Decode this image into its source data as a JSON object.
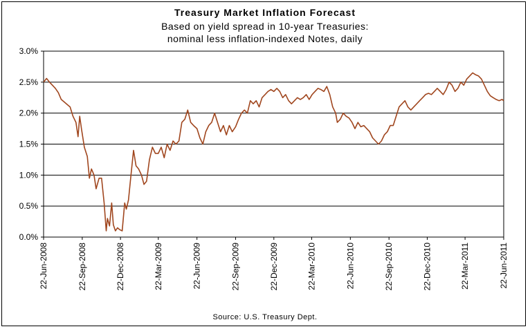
{
  "chart_data": {
    "type": "line",
    "title": "Treasury Market Inflation Forecast",
    "subtitle_lines": [
      "Based on yield spread in 10-year Treasuries:",
      "nominal less inflation-indexed Notes, daily"
    ],
    "source": "Source: U.S. Treasury Dept.",
    "xlabel": "",
    "ylabel": "",
    "ylim": [
      0,
      3.0
    ],
    "y_ticks": [
      {
        "value": 0.0,
        "label": "0.0%"
      },
      {
        "value": 0.5,
        "label": "0.5%"
      },
      {
        "value": 1.0,
        "label": "1.0%"
      },
      {
        "value": 1.5,
        "label": "1.5%"
      },
      {
        "value": 2.0,
        "label": "2.0%"
      },
      {
        "value": 2.5,
        "label": "2.5%"
      },
      {
        "value": 3.0,
        "label": "3.0%"
      }
    ],
    "x_range": [
      "2008-06-22",
      "2011-06-22"
    ],
    "x_ticks": [
      {
        "date": "2008-06-22",
        "label": "22-Jun-2008"
      },
      {
        "date": "2008-09-22",
        "label": "22-Sep-2008"
      },
      {
        "date": "2008-12-22",
        "label": "22-Dec-2008"
      },
      {
        "date": "2009-03-22",
        "label": "22-Mar-2009"
      },
      {
        "date": "2009-06-22",
        "label": "22-Jun-2009"
      },
      {
        "date": "2009-09-22",
        "label": "22-Sep-2009"
      },
      {
        "date": "2009-12-22",
        "label": "22-Dec-2009"
      },
      {
        "date": "2010-03-22",
        "label": "22-Mar-2010"
      },
      {
        "date": "2010-06-22",
        "label": "22-Jun-2010"
      },
      {
        "date": "2010-09-22",
        "label": "22-Sep-2010"
      },
      {
        "date": "2010-12-22",
        "label": "22-Dec-2010"
      },
      {
        "date": "2011-03-22",
        "label": "22-Mar-2011"
      },
      {
        "date": "2011-06-22",
        "label": "22-Jun-2011"
      }
    ],
    "grid": "horizontal",
    "line_color": "#a0461e",
    "series": [
      {
        "name": "",
        "points": [
          [
            "2008-06-22",
            2.5
          ],
          [
            "2008-06-29",
            2.56
          ],
          [
            "2008-07-06",
            2.5
          ],
          [
            "2008-07-13",
            2.45
          ],
          [
            "2008-07-20",
            2.4
          ],
          [
            "2008-07-27",
            2.33
          ],
          [
            "2008-08-03",
            2.22
          ],
          [
            "2008-08-10",
            2.18
          ],
          [
            "2008-08-17",
            2.14
          ],
          [
            "2008-08-24",
            2.1
          ],
          [
            "2008-08-31",
            1.95
          ],
          [
            "2008-09-07",
            1.85
          ],
          [
            "2008-09-12",
            1.62
          ],
          [
            "2008-09-16",
            1.95
          ],
          [
            "2008-09-20",
            1.75
          ],
          [
            "2008-09-27",
            1.45
          ],
          [
            "2008-10-04",
            1.3
          ],
          [
            "2008-10-09",
            0.95
          ],
          [
            "2008-10-14",
            1.1
          ],
          [
            "2008-10-20",
            1.0
          ],
          [
            "2008-10-25",
            0.78
          ],
          [
            "2008-11-01",
            0.95
          ],
          [
            "2008-11-07",
            0.95
          ],
          [
            "2008-11-13",
            0.55
          ],
          [
            "2008-11-18",
            0.1
          ],
          [
            "2008-11-21",
            0.3
          ],
          [
            "2008-11-26",
            0.18
          ],
          [
            "2008-12-01",
            0.55
          ],
          [
            "2008-12-05",
            0.2
          ],
          [
            "2008-12-10",
            0.1
          ],
          [
            "2008-12-15",
            0.15
          ],
          [
            "2008-12-20",
            0.12
          ],
          [
            "2008-12-26",
            0.1
          ],
          [
            "2009-01-01",
            0.55
          ],
          [
            "2009-01-05",
            0.45
          ],
          [
            "2009-01-10",
            0.6
          ],
          [
            "2009-01-16",
            1.0
          ],
          [
            "2009-01-22",
            1.4
          ],
          [
            "2009-01-28",
            1.15
          ],
          [
            "2009-02-03",
            1.1
          ],
          [
            "2009-02-10",
            1.0
          ],
          [
            "2009-02-16",
            0.85
          ],
          [
            "2009-02-22",
            0.9
          ],
          [
            "2009-03-01",
            1.25
          ],
          [
            "2009-03-08",
            1.45
          ],
          [
            "2009-03-15",
            1.35
          ],
          [
            "2009-03-22",
            1.35
          ],
          [
            "2009-03-29",
            1.45
          ],
          [
            "2009-04-05",
            1.28
          ],
          [
            "2009-04-12",
            1.5
          ],
          [
            "2009-04-19",
            1.4
          ],
          [
            "2009-04-26",
            1.55
          ],
          [
            "2009-05-03",
            1.5
          ],
          [
            "2009-05-10",
            1.55
          ],
          [
            "2009-05-17",
            1.85
          ],
          [
            "2009-05-24",
            1.9
          ],
          [
            "2009-05-31",
            2.05
          ],
          [
            "2009-06-07",
            1.85
          ],
          [
            "2009-06-14",
            1.8
          ],
          [
            "2009-06-22",
            1.75
          ],
          [
            "2009-06-29",
            1.6
          ],
          [
            "2009-07-06",
            1.5
          ],
          [
            "2009-07-13",
            1.7
          ],
          [
            "2009-07-20",
            1.8
          ],
          [
            "2009-07-27",
            1.85
          ],
          [
            "2009-08-03",
            2.0
          ],
          [
            "2009-08-10",
            1.85
          ],
          [
            "2009-08-17",
            1.7
          ],
          [
            "2009-08-24",
            1.8
          ],
          [
            "2009-08-31",
            1.65
          ],
          [
            "2009-09-07",
            1.8
          ],
          [
            "2009-09-14",
            1.7
          ],
          [
            "2009-09-22",
            1.78
          ],
          [
            "2009-09-29",
            1.9
          ],
          [
            "2009-10-06",
            2.0
          ],
          [
            "2009-10-13",
            2.05
          ],
          [
            "2009-10-20",
            2.0
          ],
          [
            "2009-10-27",
            2.2
          ],
          [
            "2009-11-03",
            2.15
          ],
          [
            "2009-11-10",
            2.2
          ],
          [
            "2009-11-17",
            2.1
          ],
          [
            "2009-11-24",
            2.25
          ],
          [
            "2009-12-01",
            2.3
          ],
          [
            "2009-12-08",
            2.35
          ],
          [
            "2009-12-15",
            2.38
          ],
          [
            "2009-12-22",
            2.35
          ],
          [
            "2009-12-29",
            2.4
          ],
          [
            "2010-01-05",
            2.35
          ],
          [
            "2010-01-12",
            2.25
          ],
          [
            "2010-01-19",
            2.3
          ],
          [
            "2010-01-26",
            2.2
          ],
          [
            "2010-02-02",
            2.15
          ],
          [
            "2010-02-09",
            2.2
          ],
          [
            "2010-02-16",
            2.25
          ],
          [
            "2010-02-23",
            2.22
          ],
          [
            "2010-03-02",
            2.25
          ],
          [
            "2010-03-09",
            2.3
          ],
          [
            "2010-03-16",
            2.22
          ],
          [
            "2010-03-23",
            2.3
          ],
          [
            "2010-03-30",
            2.35
          ],
          [
            "2010-04-06",
            2.4
          ],
          [
            "2010-04-13",
            2.38
          ],
          [
            "2010-04-20",
            2.35
          ],
          [
            "2010-04-27",
            2.43
          ],
          [
            "2010-05-04",
            2.3
          ],
          [
            "2010-05-11",
            2.1
          ],
          [
            "2010-05-18",
            2.0
          ],
          [
            "2010-05-22",
            1.85
          ],
          [
            "2010-05-29",
            1.9
          ],
          [
            "2010-06-05",
            2.0
          ],
          [
            "2010-06-12",
            1.95
          ],
          [
            "2010-06-19",
            1.92
          ],
          [
            "2010-06-26",
            1.85
          ],
          [
            "2010-07-03",
            1.75
          ],
          [
            "2010-07-10",
            1.85
          ],
          [
            "2010-07-17",
            1.78
          ],
          [
            "2010-07-24",
            1.8
          ],
          [
            "2010-07-31",
            1.75
          ],
          [
            "2010-08-07",
            1.7
          ],
          [
            "2010-08-14",
            1.6
          ],
          [
            "2010-08-21",
            1.55
          ],
          [
            "2010-08-28",
            1.5
          ],
          [
            "2010-09-04",
            1.55
          ],
          [
            "2010-09-11",
            1.65
          ],
          [
            "2010-09-18",
            1.7
          ],
          [
            "2010-09-25",
            1.8
          ],
          [
            "2010-10-02",
            1.8
          ],
          [
            "2010-10-09",
            1.95
          ],
          [
            "2010-10-16",
            2.1
          ],
          [
            "2010-10-23",
            2.15
          ],
          [
            "2010-10-30",
            2.2
          ],
          [
            "2010-11-06",
            2.1
          ],
          [
            "2010-11-13",
            2.05
          ],
          [
            "2010-11-20",
            2.1
          ],
          [
            "2010-11-27",
            2.15
          ],
          [
            "2010-12-04",
            2.2
          ],
          [
            "2010-12-11",
            2.25
          ],
          [
            "2010-12-18",
            2.3
          ],
          [
            "2010-12-25",
            2.32
          ],
          [
            "2011-01-01",
            2.3
          ],
          [
            "2011-01-08",
            2.35
          ],
          [
            "2011-01-15",
            2.4
          ],
          [
            "2011-01-22",
            2.35
          ],
          [
            "2011-01-29",
            2.3
          ],
          [
            "2011-02-05",
            2.38
          ],
          [
            "2011-02-12",
            2.5
          ],
          [
            "2011-02-19",
            2.45
          ],
          [
            "2011-02-26",
            2.35
          ],
          [
            "2011-03-05",
            2.4
          ],
          [
            "2011-03-12",
            2.5
          ],
          [
            "2011-03-19",
            2.45
          ],
          [
            "2011-03-26",
            2.55
          ],
          [
            "2011-04-02",
            2.6
          ],
          [
            "2011-04-09",
            2.65
          ],
          [
            "2011-04-16",
            2.62
          ],
          [
            "2011-04-23",
            2.6
          ],
          [
            "2011-04-30",
            2.55
          ],
          [
            "2011-05-07",
            2.45
          ],
          [
            "2011-05-14",
            2.35
          ],
          [
            "2011-05-21",
            2.28
          ],
          [
            "2011-05-28",
            2.25
          ],
          [
            "2011-06-04",
            2.22
          ],
          [
            "2011-06-11",
            2.2
          ],
          [
            "2011-06-18",
            2.22
          ],
          [
            "2011-06-22",
            2.2
          ]
        ]
      }
    ]
  }
}
